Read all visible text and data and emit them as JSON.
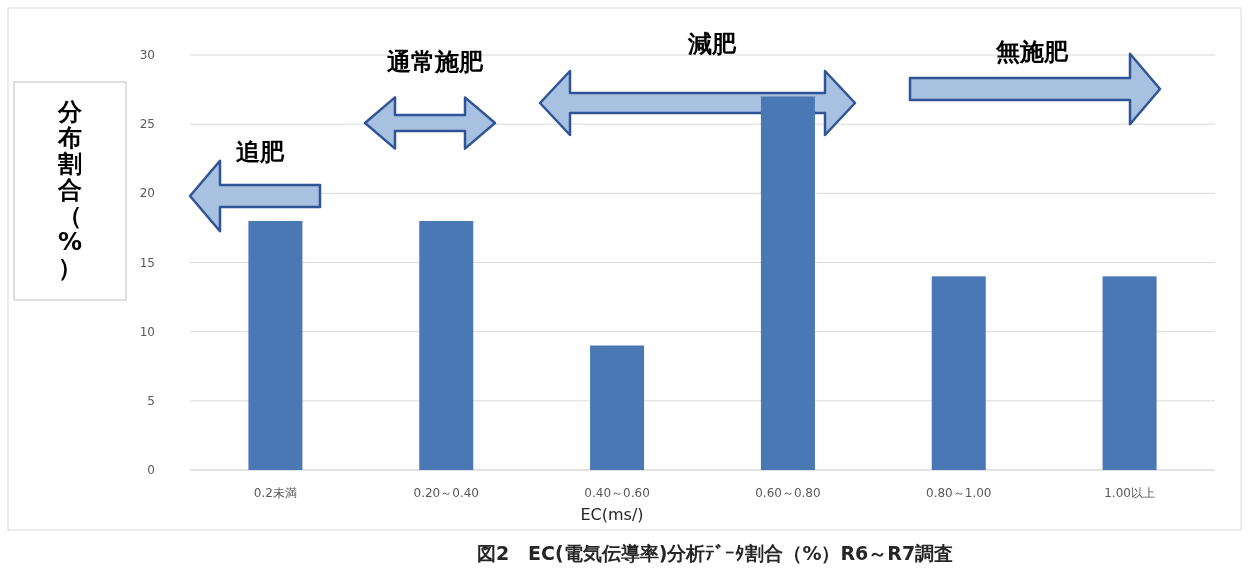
{
  "chart_data": {
    "type": "bar",
    "categories": [
      "0.2未満",
      "0.20～0.40",
      "0.40～0.60",
      "0.60～0.80",
      "0.80～1.00",
      "1.00以上"
    ],
    "values": [
      18,
      18,
      9,
      27,
      14,
      14
    ],
    "color": "#4a78b5",
    "ylim": [
      0,
      30
    ],
    "yticks": [
      0,
      5,
      10,
      15,
      20,
      25,
      30
    ],
    "grid": "y",
    "xlabel": "EC(ms/)",
    "ylabel": "分布割合（%）",
    "annotations": [
      "追肥",
      "通常施肥",
      "減肥",
      "無施肥",
      "図2　EC(電気伝導率)分析ﾃﾞｰﾀ割合（%）R6～R7調査"
    ]
  }
}
